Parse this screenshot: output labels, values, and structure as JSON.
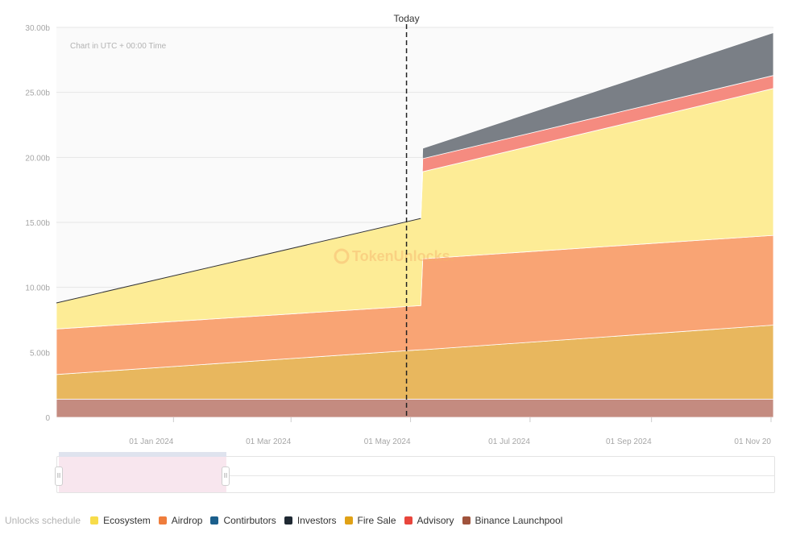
{
  "chart_data": {
    "type": "area",
    "stacked": true,
    "title": "",
    "note": "Chart in UTC + 00:00 Time",
    "watermark": "TokenUnlocks.",
    "today_label": "Today",
    "today_x": "2024-05-01",
    "x_start": "2023-11-01",
    "x_end": "2024-11-01",
    "ylim": [
      0,
      30
    ],
    "y_ticks": [
      {
        "value": 0,
        "label": "0"
      },
      {
        "value": 5,
        "label": "5.00b"
      },
      {
        "value": 10,
        "label": "10.00b"
      },
      {
        "value": 15,
        "label": "15.00b"
      },
      {
        "value": 20,
        "label": "20.00b"
      },
      {
        "value": 25,
        "label": "25.00b"
      },
      {
        "value": 30,
        "label": "30.00b"
      }
    ],
    "x_ticks": [
      {
        "date": "2024-01-01",
        "label": "01 Jan 2024"
      },
      {
        "date": "2024-03-01",
        "label": "01 Mar 2024"
      },
      {
        "date": "2024-05-01",
        "label": "01 May 2024"
      },
      {
        "date": "2024-07-01",
        "label": "01 Jul 2024"
      },
      {
        "date": "2024-09-01",
        "label": "01 Sep 2024"
      },
      {
        "date": "2024-11-01",
        "label": "01 Nov 20"
      }
    ],
    "x": [
      "2023-11-01",
      "2024-05-05",
      "2024-05-06",
      "2024-11-01"
    ],
    "series": [
      {
        "name": "Binance Launchpool",
        "color": "#c48b80",
        "values": [
          1.4,
          1.4,
          1.4,
          1.4
        ]
      },
      {
        "name": "Fire Sale",
        "color": "#e8b75e",
        "values": [
          1.9,
          3.8,
          3.8,
          5.7
        ]
      },
      {
        "name": "Airdrop",
        "color": "#f9a474",
        "values": [
          3.5,
          3.4,
          7.0,
          6.9
        ]
      },
      {
        "name": "Ecosystem",
        "color": "#fdec96",
        "values": [
          2.0,
          6.7,
          6.7,
          11.3
        ]
      },
      {
        "name": "Advisory",
        "color": "#f58b80",
        "values": [
          0,
          0,
          1.0,
          1.0
        ]
      },
      {
        "name": "Investors",
        "color": "#7a7f86",
        "values": [
          0,
          0,
          0.8,
          3.3
        ]
      },
      {
        "name": "Contirbutors",
        "color": "#2b6ea3",
        "values": [
          0,
          0,
          0,
          0
        ]
      }
    ]
  },
  "legend": {
    "title": "Unlocks schedule",
    "items": [
      {
        "label": "Ecosystem",
        "color": "#f7dc4a"
      },
      {
        "label": "Airdrop",
        "color": "#ef7d3c"
      },
      {
        "label": "Contirbutors",
        "color": "#1b5f8c"
      },
      {
        "label": "Investors",
        "color": "#1f2933"
      },
      {
        "label": "Fire Sale",
        "color": "#e0a116"
      },
      {
        "label": "Advisory",
        "color": "#e8453c"
      },
      {
        "label": "Binance Launchpool",
        "color": "#a0533c"
      }
    ]
  },
  "navigator": {
    "handle_glyph": "II",
    "top_glyph": "III"
  }
}
